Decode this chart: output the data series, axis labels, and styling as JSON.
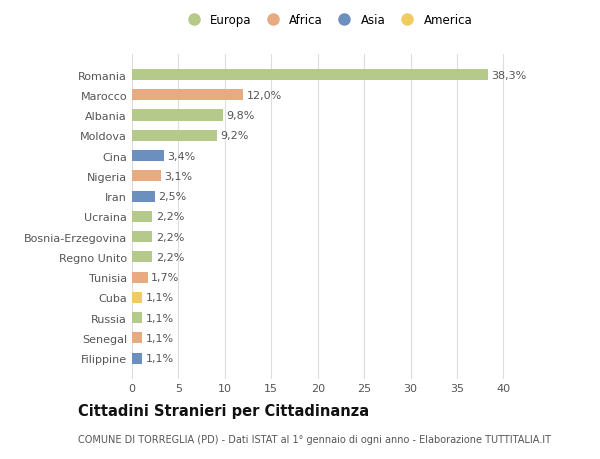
{
  "countries": [
    "Romania",
    "Marocco",
    "Albania",
    "Moldova",
    "Cina",
    "Nigeria",
    "Iran",
    "Ucraina",
    "Bosnia-Erzegovina",
    "Regno Unito",
    "Tunisia",
    "Cuba",
    "Russia",
    "Senegal",
    "Filippine"
  ],
  "values": [
    38.3,
    12.0,
    9.8,
    9.2,
    3.4,
    3.1,
    2.5,
    2.2,
    2.2,
    2.2,
    1.7,
    1.1,
    1.1,
    1.1,
    1.1
  ],
  "labels": [
    "38,3%",
    "12,0%",
    "9,8%",
    "9,2%",
    "3,4%",
    "3,1%",
    "2,5%",
    "2,2%",
    "2,2%",
    "2,2%",
    "1,7%",
    "1,1%",
    "1,1%",
    "1,1%",
    "1,1%"
  ],
  "continents": [
    "Europa",
    "Africa",
    "Europa",
    "Europa",
    "Asia",
    "Africa",
    "Asia",
    "Europa",
    "Europa",
    "Europa",
    "Africa",
    "America",
    "Europa",
    "Africa",
    "Asia"
  ],
  "colors": {
    "Europa": "#b5c98a",
    "Africa": "#e8aa80",
    "Asia": "#6b8fbf",
    "America": "#f0cc60"
  },
  "legend_order": [
    "Europa",
    "Africa",
    "Asia",
    "America"
  ],
  "title": "Cittadini Stranieri per Cittadinanza",
  "subtitle": "COMUNE DI TORREGLIA (PD) - Dati ISTAT al 1° gennaio di ogni anno - Elaborazione TUTTITALIA.IT",
  "xlim": [
    0,
    42
  ],
  "xticks": [
    0,
    5,
    10,
    15,
    20,
    25,
    30,
    35,
    40
  ],
  "background_color": "#ffffff",
  "bar_height": 0.55,
  "label_fontsize": 8,
  "tick_fontsize": 8,
  "title_fontsize": 10.5,
  "subtitle_fontsize": 7
}
